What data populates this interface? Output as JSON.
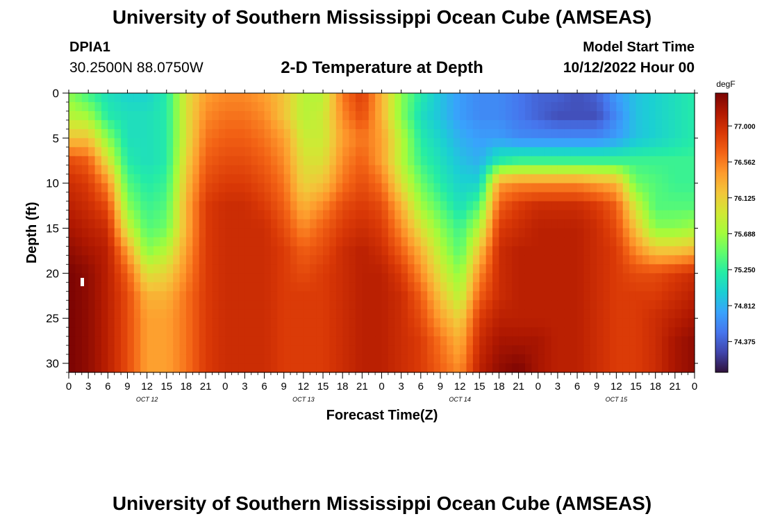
{
  "page": {
    "title": "University of Southern Mississippi Ocean Cube (AMSEAS)",
    "footer_title": "University of Southern Mississippi Ocean Cube (AMSEAS)",
    "station_id": "DPIA1",
    "location": "30.2500N  88.0750W",
    "model_start_label": "Model Start Time",
    "model_start_value": "10/12/2022 Hour 00"
  },
  "chart_data": {
    "type": "heatmap",
    "title": "2-D Temperature at Depth",
    "xlabel": "Forecast Time(Z)",
    "ylabel": "Depth (ft)",
    "x_range_hours": [
      0,
      96
    ],
    "ylim": [
      0,
      31
    ],
    "x_ticks": [
      "0",
      "3",
      "6",
      "9",
      "12",
      "15",
      "18",
      "21",
      "0",
      "3",
      "6",
      "9",
      "12",
      "15",
      "18",
      "21",
      "0",
      "3",
      "6",
      "9",
      "12",
      "15",
      "18",
      "21",
      "0",
      "3",
      "6",
      "9",
      "12",
      "15",
      "18",
      "21",
      "0"
    ],
    "day_labels": [
      {
        "label": "OCT 12",
        "hour": 12
      },
      {
        "label": "OCT 13",
        "hour": 36
      },
      {
        "label": "OCT 14",
        "hour": 60
      },
      {
        "label": "OCT 15",
        "hour": 84
      }
    ],
    "y_ticks": [
      0,
      5,
      10,
      15,
      20,
      25,
      30
    ],
    "colorbar": {
      "unit": "degF",
      "min": 74.0,
      "max": 77.4,
      "ticks": [
        "77.000",
        "76.562",
        "76.125",
        "75.688",
        "75.250",
        "74.812",
        "74.375"
      ],
      "colors": [
        "#30123b",
        "#4145ab",
        "#4675ed",
        "#39a2fc",
        "#1bcfd4",
        "#24eca6",
        "#61fc6c",
        "#a4fc3b",
        "#d1e834",
        "#f3c63a",
        "#fe9b2d",
        "#f36315",
        "#d93806",
        "#b11901",
        "#7a0403"
      ]
    },
    "time_hours": [
      0,
      3,
      6,
      9,
      12,
      15,
      18,
      21,
      24,
      27,
      30,
      33,
      36,
      39,
      42,
      45,
      48,
      51,
      54,
      57,
      60,
      63,
      66,
      69,
      72,
      75,
      78,
      81,
      84,
      87,
      90,
      93,
      96
    ],
    "depth_ft": [
      0,
      2.5,
      5,
      7.5,
      10,
      12.5,
      15,
      17.5,
      20,
      22.5,
      25,
      27.5,
      31
    ],
    "temperature_degF": [
      [
        75.6,
        75.3,
        75.1,
        75.0,
        75.0,
        75.2,
        76.0,
        76.4,
        76.5,
        76.5,
        76.4,
        76.2,
        75.8,
        75.8,
        76.6,
        76.9,
        76.3,
        75.6,
        75.2,
        74.9,
        74.7,
        74.6,
        74.6,
        74.5,
        74.4,
        74.4,
        74.3,
        74.4,
        74.7,
        74.9,
        75.0,
        75.1,
        75.2
      ],
      [
        75.8,
        75.7,
        75.2,
        75.1,
        75.1,
        75.2,
        76.0,
        76.5,
        76.6,
        76.6,
        76.5,
        76.2,
        75.8,
        75.9,
        76.5,
        76.8,
        76.3,
        75.6,
        75.1,
        74.9,
        74.7,
        74.6,
        74.6,
        74.5,
        74.4,
        74.3,
        74.3,
        74.3,
        74.6,
        74.9,
        75.0,
        75.1,
        75.2
      ],
      [
        76.2,
        76.2,
        75.6,
        75.1,
        75.1,
        75.2,
        76.0,
        76.6,
        76.7,
        76.7,
        76.6,
        76.4,
        75.9,
        75.9,
        76.4,
        76.6,
        76.4,
        75.8,
        75.2,
        75.0,
        74.8,
        74.7,
        74.7,
        74.6,
        74.6,
        74.6,
        74.6,
        74.6,
        74.7,
        74.9,
        75.0,
        75.1,
        75.2
      ],
      [
        76.8,
        76.7,
        76.0,
        75.2,
        75.1,
        75.2,
        76.1,
        76.7,
        76.8,
        76.8,
        76.7,
        76.5,
        76.0,
        76.0,
        76.5,
        76.7,
        76.4,
        75.8,
        75.3,
        75.1,
        74.9,
        74.8,
        75.2,
        75.3,
        75.3,
        75.3,
        75.3,
        75.3,
        75.3,
        75.3,
        75.3,
        75.3,
        75.3
      ],
      [
        77.0,
        76.9,
        76.5,
        75.4,
        75.2,
        75.3,
        76.2,
        76.8,
        76.9,
        76.9,
        76.8,
        76.6,
        76.1,
        76.2,
        76.6,
        76.8,
        76.6,
        76.0,
        75.5,
        75.2,
        75.0,
        75.0,
        76.4,
        76.5,
        76.5,
        76.5,
        76.5,
        76.4,
        76.3,
        75.5,
        75.4,
        75.3,
        75.3
      ],
      [
        77.1,
        77.0,
        76.8,
        75.6,
        75.3,
        75.4,
        76.3,
        76.9,
        77.0,
        77.0,
        76.9,
        76.7,
        76.3,
        76.5,
        76.8,
        76.9,
        76.8,
        76.3,
        75.7,
        75.4,
        75.1,
        75.4,
        76.7,
        76.9,
        77.0,
        77.0,
        77.0,
        76.9,
        76.7,
        75.9,
        75.4,
        75.4,
        75.4
      ],
      [
        77.2,
        77.1,
        77.0,
        75.9,
        75.4,
        75.5,
        76.3,
        76.9,
        77.0,
        77.0,
        77.0,
        76.8,
        76.5,
        76.7,
        76.9,
        77.0,
        76.9,
        76.5,
        76.0,
        75.6,
        75.3,
        75.8,
        76.9,
        77.0,
        77.1,
        77.1,
        77.1,
        77.0,
        76.8,
        76.2,
        75.6,
        75.6,
        75.7
      ],
      [
        77.3,
        77.2,
        77.1,
        76.4,
        75.6,
        75.8,
        76.4,
        76.9,
        77.0,
        77.0,
        77.0,
        76.9,
        76.7,
        76.8,
        77.0,
        77.1,
        77.0,
        76.7,
        76.3,
        75.8,
        75.4,
        76.2,
        77.0,
        77.1,
        77.1,
        77.1,
        77.1,
        77.0,
        76.9,
        76.5,
        76.2,
        76.2,
        76.3
      ],
      [
        77.4,
        77.3,
        77.1,
        76.7,
        76.0,
        76.1,
        76.5,
        76.9,
        77.0,
        77.0,
        77.0,
        76.9,
        76.8,
        76.9,
        77.0,
        77.1,
        77.1,
        76.9,
        76.5,
        76.0,
        75.6,
        76.5,
        77.0,
        77.1,
        77.1,
        77.1,
        77.1,
        77.0,
        76.9,
        76.8,
        76.8,
        76.9,
        77.0
      ],
      [
        77.4,
        77.3,
        77.1,
        76.8,
        76.3,
        76.3,
        76.6,
        76.9,
        77.0,
        77.0,
        77.0,
        76.9,
        76.9,
        76.9,
        77.0,
        77.1,
        77.1,
        77.0,
        76.7,
        76.2,
        75.8,
        76.7,
        77.0,
        77.1,
        77.1,
        77.1,
        77.1,
        77.0,
        76.9,
        76.9,
        76.9,
        77.0,
        77.1
      ],
      [
        77.4,
        77.3,
        77.1,
        76.8,
        76.4,
        76.4,
        76.6,
        76.9,
        77.0,
        77.0,
        77.0,
        76.9,
        76.9,
        76.9,
        77.0,
        77.1,
        77.1,
        77.0,
        76.8,
        76.4,
        76.1,
        76.9,
        77.1,
        77.1,
        77.1,
        77.1,
        77.1,
        77.0,
        76.9,
        76.9,
        77.0,
        77.1,
        77.2
      ],
      [
        77.4,
        77.3,
        77.1,
        76.8,
        76.4,
        76.4,
        76.6,
        76.9,
        77.0,
        77.0,
        77.0,
        76.9,
        76.9,
        76.9,
        77.0,
        77.1,
        77.1,
        77.0,
        76.9,
        76.6,
        76.3,
        77.0,
        77.2,
        77.2,
        77.2,
        77.1,
        77.1,
        77.0,
        76.9,
        76.9,
        77.0,
        77.2,
        77.3
      ],
      [
        77.4,
        77.3,
        77.1,
        76.8,
        76.4,
        76.4,
        76.6,
        76.9,
        77.0,
        77.0,
        77.0,
        76.9,
        76.9,
        76.9,
        77.0,
        77.1,
        77.1,
        77.0,
        76.9,
        76.7,
        76.5,
        77.1,
        77.3,
        77.4,
        77.2,
        77.1,
        77.1,
        77.0,
        76.9,
        76.9,
        77.0,
        77.2,
        77.3
      ]
    ]
  }
}
